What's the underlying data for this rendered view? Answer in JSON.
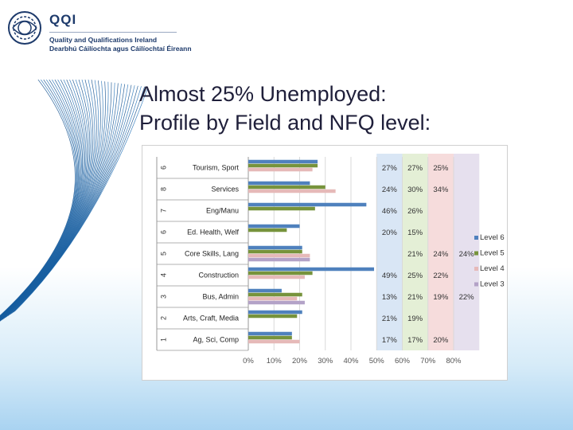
{
  "logo": {
    "name": "QQI",
    "line1": "Quality and Qualifications Ireland",
    "line2": "Dearbhú Cáilíochta agus Cáilíochtaí Éireann"
  },
  "title": {
    "line1": "Almost 25% Unemployed:",
    "line2": "Profile by Field and NFQ level:"
  },
  "chart_data": {
    "type": "bar",
    "orientation": "horizontal",
    "title": "",
    "xlabel": "",
    "ylabel": "",
    "xlim": [
      0,
      80
    ],
    "xticks": [
      "0%",
      "10%",
      "20%",
      "30%",
      "40%",
      "50%",
      "60%",
      "70%",
      "80%"
    ],
    "legend_position": "right",
    "categories": [
      {
        "num": "6",
        "label": "Tourism, Sport"
      },
      {
        "num": "8",
        "label": "Services"
      },
      {
        "num": "7",
        "label": "Eng/Manu"
      },
      {
        "num": "6",
        "label": "Ed. Health, Welf"
      },
      {
        "num": "5",
        "label": "Core Skills, Lang"
      },
      {
        "num": "4",
        "label": "Construction"
      },
      {
        "num": "3",
        "label": "Bus, Admin"
      },
      {
        "num": "2",
        "label": "Arts, Craft, Media"
      },
      {
        "num": "1",
        "label": "Ag, Sci, Comp"
      }
    ],
    "series": [
      {
        "name": "Level 6",
        "color": "#4f81bd",
        "values": [
          27,
          24,
          46,
          20,
          21,
          49,
          13,
          21,
          17
        ]
      },
      {
        "name": "Level 5",
        "color": "#77933c",
        "values": [
          27,
          30,
          26,
          15,
          21,
          25,
          21,
          19,
          17
        ]
      },
      {
        "name": "Level 4",
        "color": "#e6b9b8",
        "values": [
          25,
          34,
          null,
          null,
          24,
          22,
          19,
          null,
          20
        ]
      },
      {
        "name": "Level 3",
        "color": "#b3a2c7",
        "values": [
          null,
          null,
          null,
          null,
          24,
          null,
          22,
          null,
          null
        ]
      }
    ],
    "value_labels": [
      [
        "27%",
        "27%",
        "25%",
        ""
      ],
      [
        "24%",
        "30%",
        "34%",
        ""
      ],
      [
        "46%",
        "26%",
        "",
        ""
      ],
      [
        "20%",
        "15%",
        "",
        ""
      ],
      [
        "",
        "21%",
        "24%",
        "24%"
      ],
      [
        "49%",
        "25%",
        "22%",
        ""
      ],
      [
        "13%",
        "21%",
        "19%",
        "22%"
      ],
      [
        "21%",
        "19%",
        "",
        ""
      ],
      [
        "17%",
        "17%",
        "20%",
        ""
      ]
    ],
    "column_bands": [
      "#d9e6f5",
      "#e4efd6",
      "#f6dcdc",
      "#e6e0ee"
    ]
  }
}
